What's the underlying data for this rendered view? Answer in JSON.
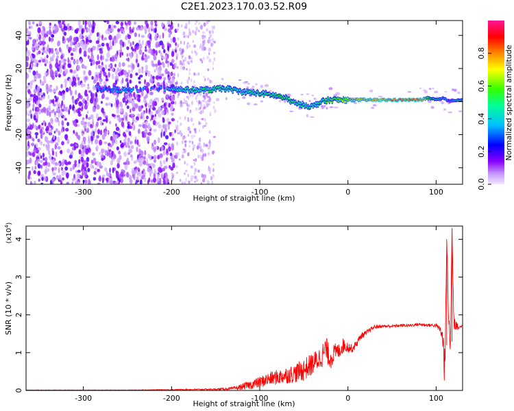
{
  "title": "C2E1.2023.170.03.52.R09",
  "chart_data": [
    {
      "type": "heatmap",
      "title": "",
      "xlabel": "Height of straight line (km)",
      "ylabel": "Frequency (Hz)",
      "xlim": [
        -365,
        130
      ],
      "ylim": [
        -50,
        49
      ],
      "xticks": [
        -300,
        -200,
        -100,
        0,
        100
      ],
      "yticks": [
        -40,
        -20,
        0,
        20,
        40
      ],
      "colorbar": {
        "label": "Normalized spectral amplitude",
        "range": [
          0.0,
          1.0
        ],
        "ticks": [
          0.0,
          0.2,
          0.4,
          0.6,
          0.8
        ],
        "colormap": [
          "#e6ccff",
          "#8800ff",
          "#0000ff",
          "#00ccff",
          "#00ff66",
          "#ffff00",
          "#ff8800",
          "#ff0000",
          "#ff1493"
        ]
      },
      "signal_trace": {
        "x": [
          -285,
          -260,
          -240,
          -220,
          -200,
          -180,
          -160,
          -140,
          -120,
          -100,
          -85,
          -70,
          -60,
          -50,
          -40,
          -30,
          -20,
          -10,
          0,
          20,
          40,
          60,
          80,
          90,
          100,
          110,
          115,
          120,
          130
        ],
        "freq": [
          8,
          7,
          7,
          8,
          8,
          7,
          7,
          8,
          6,
          5,
          4,
          2,
          -1,
          -2,
          -3,
          0,
          1,
          1,
          1,
          1,
          1,
          1,
          1,
          2,
          1,
          2,
          0,
          1,
          1
        ],
        "amplitude": [
          0.3,
          0.35,
          0.35,
          0.3,
          0.4,
          0.45,
          0.5,
          0.5,
          0.45,
          0.5,
          0.5,
          0.55,
          0.5,
          0.5,
          0.45,
          0.5,
          0.55,
          0.6,
          0.65,
          0.75,
          0.8,
          0.85,
          0.85,
          0.6,
          0.5,
          0.45,
          0.3,
          0.45,
          0.5
        ]
      },
      "noise": {
        "dense_region_x": [
          -365,
          -195
        ],
        "sparse_region_x": [
          -195,
          -150
        ],
        "amplitude_range": [
          0.05,
          0.2
        ]
      }
    },
    {
      "type": "line",
      "title": "",
      "xlabel": "Height of straight line (km)",
      "ylabel": "SNR (10 * v/v)",
      "yscale_note": "(x10",
      "yscale_exp": "4",
      "yscale_close": ")",
      "xlim": [
        -365,
        130
      ],
      "ylim": [
        0,
        4.35
      ],
      "xticks": [
        -300,
        -200,
        -100,
        0,
        100
      ],
      "yticks": [
        0,
        1,
        2,
        3,
        4
      ],
      "series": [
        {
          "color": "#ff0000",
          "x": [
            -365,
            -300,
            -250,
            -200,
            -150,
            -130,
            -120,
            -110,
            -100,
            -90,
            -80,
            -70,
            -60,
            -50,
            -40,
            -30,
            -25,
            -20,
            -15,
            -10,
            -5,
            0,
            5,
            10,
            15,
            20,
            25,
            30,
            40,
            50,
            60,
            70,
            80,
            90,
            100,
            105,
            108,
            110,
            112,
            114,
            116,
            118,
            120,
            125,
            130
          ],
          "y": [
            0.01,
            0.01,
            0.01,
            0.02,
            0.03,
            0.05,
            0.1,
            0.15,
            0.22,
            0.3,
            0.35,
            0.4,
            0.45,
            0.55,
            0.7,
            0.9,
            1.1,
            0.85,
            1.0,
            1.05,
            1.2,
            1.15,
            1.1,
            1.25,
            1.45,
            1.5,
            1.6,
            1.68,
            1.7,
            1.7,
            1.72,
            1.72,
            1.75,
            1.73,
            1.72,
            1.6,
            1.3,
            0.4,
            4.0,
            2.2,
            0.9,
            4.3,
            1.9,
            1.65,
            1.72
          ],
          "noise_amplitude": [
            0.005,
            0.005,
            0.005,
            0.01,
            0.02,
            0.04,
            0.08,
            0.12,
            0.15,
            0.18,
            0.2,
            0.22,
            0.25,
            0.3,
            0.3,
            0.3,
            0.35,
            0.3,
            0.25,
            0.2,
            0.2,
            0.15,
            0.1,
            0.1,
            0.08,
            0.08,
            0.06,
            0.05,
            0.04,
            0.04,
            0.04,
            0.04,
            0.04,
            0.04,
            0.05,
            0.1,
            0.3,
            0.6,
            0.0,
            0.6,
            0.4,
            0.0,
            0.3,
            0.05,
            0.03
          ]
        }
      ]
    }
  ]
}
